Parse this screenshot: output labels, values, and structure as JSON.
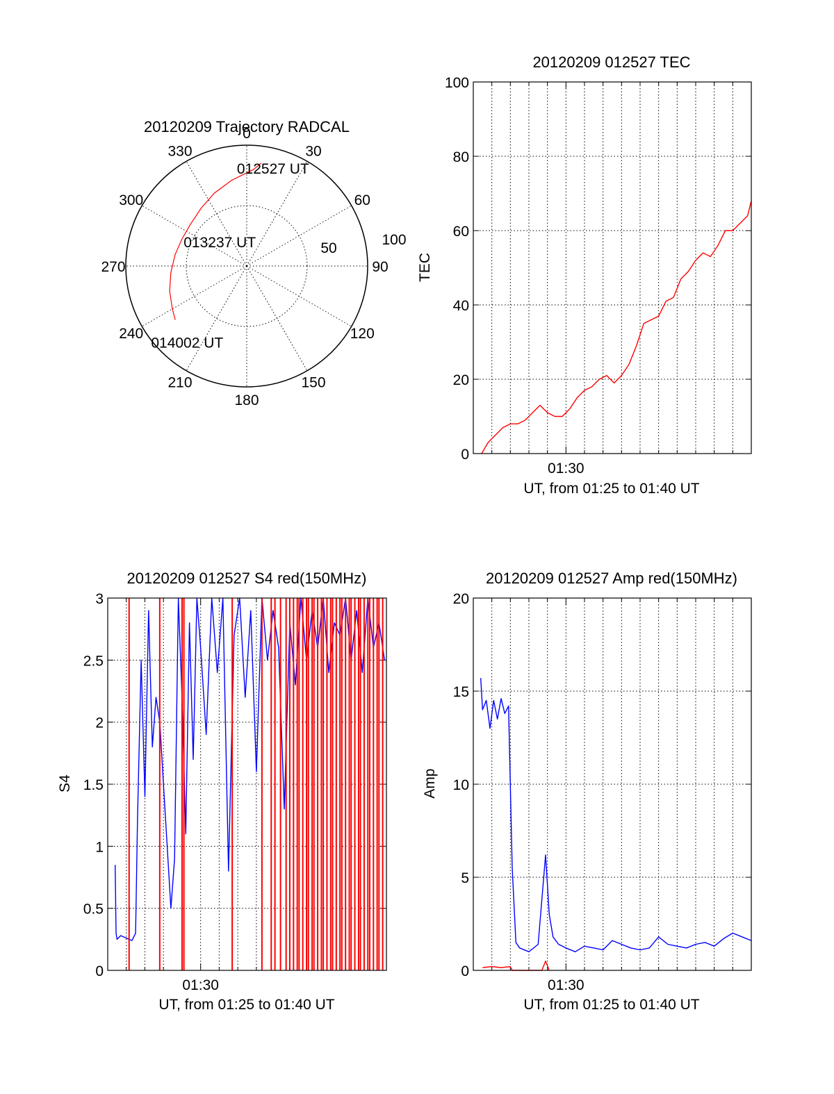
{
  "chart_data": [
    {
      "type": "polar",
      "title": "20120209 Trajectory RADCAL",
      "azimuth_labels": [
        "0",
        "30",
        "60",
        "90",
        "120",
        "150",
        "180",
        "210",
        "240",
        "270",
        "300",
        "330"
      ],
      "radial_labels": [
        "50",
        "100"
      ],
      "rlim": [
        0,
        100
      ],
      "grid": true,
      "trajectory_color": "#ff0000",
      "trajectory": {
        "az": [
          8,
          4,
          350,
          336,
          322,
          307,
          293,
          279,
          265,
          252,
          240,
          233
        ],
        "zenith_dist": [
          86,
          80,
          72,
          66,
          61,
          58,
          58,
          60,
          63,
          67,
          71,
          74
        ]
      },
      "annotations": [
        {
          "text": "012527 UT",
          "az": 15,
          "r": 84
        },
        {
          "text": "013237 UT",
          "az": 312,
          "r": 30
        },
        {
          "text": "014002 UT",
          "az": 218,
          "r": 80
        }
      ]
    },
    {
      "type": "line",
      "title": "20120209 012527 TEC",
      "xlabel": "UT, from 01:25 to 01:40 UT",
      "ylabel": "TEC",
      "xlim": [
        25,
        40
      ],
      "ylim": [
        0,
        100
      ],
      "yticks": [
        "0",
        "20",
        "40",
        "60",
        "80",
        "100"
      ],
      "xtick_label": "01:30",
      "xtick_value": 30,
      "grid": true,
      "series": [
        {
          "color": "#ff0000",
          "x": [
            25.45,
            25.8,
            26.2,
            26.6,
            27.0,
            27.4,
            27.8,
            28.2,
            28.6,
            29.0,
            29.4,
            29.8,
            30.2,
            30.6,
            31.0,
            31.4,
            31.8,
            32.2,
            32.6,
            33.0,
            33.4,
            33.8,
            34.2,
            34.6,
            35.0,
            35.4,
            35.8,
            36.2,
            36.6,
            37.0,
            37.4,
            37.8,
            38.2,
            38.6,
            39.0,
            39.4,
            39.8,
            40.0
          ],
          "y": [
            0,
            3,
            5,
            7,
            8,
            8,
            9,
            11,
            13,
            11,
            10,
            10,
            12,
            15,
            17,
            18,
            20,
            21,
            19,
            21,
            24,
            29,
            35,
            36,
            37,
            41,
            42,
            47,
            49,
            52,
            54,
            53,
            56,
            60,
            60,
            62,
            64,
            68
          ]
        }
      ]
    },
    {
      "type": "line",
      "title": "20120209 012527 S4 red(150MHz)",
      "xlabel": "UT, from 01:25 to 01:40 UT",
      "ylabel": "S4",
      "xlim": [
        25,
        40
      ],
      "ylim": [
        0,
        3
      ],
      "yticks": [
        "0",
        "0.5",
        "1",
        "1.5",
        "2",
        "2.5",
        "3"
      ],
      "xtick_label": "01:30",
      "xtick_value": 30,
      "grid": true,
      "series": [
        {
          "color": "#0000ff",
          "x": [
            25.4,
            25.45,
            25.5,
            25.7,
            26.0,
            26.3,
            26.5,
            26.6,
            26.8,
            27.0,
            27.2,
            27.4,
            27.6,
            27.8,
            28.0,
            28.4,
            28.6,
            28.8,
            29.0,
            29.2,
            29.4,
            29.6,
            29.8,
            30.0,
            30.3,
            30.6,
            30.9,
            31.2,
            31.5,
            31.8,
            32.1,
            32.4,
            32.7,
            33.0,
            33.3,
            33.6,
            33.9,
            34.2,
            34.5,
            34.8,
            35.1,
            35.4,
            35.7,
            36.0,
            36.3,
            36.6,
            36.9,
            37.2,
            37.5,
            37.8,
            38.1,
            38.4,
            38.7,
            39.0,
            39.3,
            39.6,
            39.9
          ],
          "y": [
            0.85,
            0.3,
            0.25,
            0.28,
            0.26,
            0.24,
            0.3,
            1.2,
            2.5,
            1.4,
            2.9,
            1.8,
            2.2,
            2.0,
            1.5,
            0.5,
            0.9,
            3.0,
            2.2,
            1.1,
            2.8,
            1.7,
            3.0,
            2.6,
            1.9,
            3.0,
            2.4,
            3.0,
            0.8,
            2.7,
            3.0,
            2.2,
            2.9,
            1.6,
            3.0,
            2.5,
            2.9,
            2.6,
            1.3,
            2.8,
            2.3,
            3.0,
            2.5,
            2.9,
            2.6,
            3.0,
            2.4,
            2.8,
            2.7,
            3.0,
            2.5,
            2.9,
            2.4,
            3.0,
            2.6,
            2.8,
            2.5
          ]
        },
        {
          "color": "#ff0000",
          "type": "spikes",
          "x": [
            26.15,
            27.8,
            29.0,
            29.1,
            31.7,
            33.3,
            33.8,
            34.0,
            34.3,
            34.6,
            34.8,
            35.0,
            35.2,
            35.3,
            35.5,
            35.7,
            35.8,
            36.0,
            36.1,
            36.3,
            36.5,
            36.6,
            36.8,
            37.0,
            37.1,
            37.3,
            37.5,
            37.6,
            37.8,
            38.0,
            38.1,
            38.3,
            38.5,
            38.6,
            38.8,
            39.0,
            39.1,
            39.3,
            39.5,
            39.6,
            39.8
          ]
        }
      ]
    },
    {
      "type": "line",
      "title": "20120209 012527 Amp red(150MHz)",
      "xlabel": "UT, from 01:25 to 01:40 UT",
      "ylabel": "Amp",
      "xlim": [
        25,
        40
      ],
      "ylim": [
        0,
        20
      ],
      "yticks": [
        "0",
        "5",
        "10",
        "15",
        "20"
      ],
      "xtick_label": "01:30",
      "xtick_value": 30,
      "grid": true,
      "series": [
        {
          "color": "#0000ff",
          "x": [
            25.4,
            25.5,
            25.7,
            25.9,
            26.1,
            26.3,
            26.5,
            26.7,
            26.9,
            27.1,
            27.3,
            27.5,
            28.0,
            28.5,
            28.9,
            29.1,
            29.3,
            29.6,
            30.0,
            30.5,
            31.0,
            31.5,
            32.0,
            32.5,
            33.0,
            33.5,
            34.0,
            34.5,
            35.0,
            35.5,
            36.0,
            36.5,
            37.0,
            37.5,
            38.0,
            38.5,
            39.0,
            39.5,
            40.0
          ],
          "y": [
            15.7,
            14.0,
            14.5,
            13.0,
            14.5,
            13.5,
            14.6,
            13.8,
            14.2,
            5.5,
            1.5,
            1.2,
            1.0,
            1.4,
            6.2,
            3.0,
            1.8,
            1.4,
            1.2,
            1.0,
            1.3,
            1.2,
            1.1,
            1.6,
            1.4,
            1.2,
            1.1,
            1.2,
            1.8,
            1.4,
            1.3,
            1.2,
            1.4,
            1.5,
            1.3,
            1.7,
            2.0,
            1.8,
            1.6
          ]
        },
        {
          "color": "#ff0000",
          "x": [
            25.5,
            26.0,
            26.5,
            27.0,
            27.1,
            28.7,
            28.9,
            29.1
          ],
          "y": [
            0.15,
            0.2,
            0.15,
            0.2,
            0.0,
            0.0,
            0.5,
            0.0
          ]
        }
      ]
    }
  ]
}
